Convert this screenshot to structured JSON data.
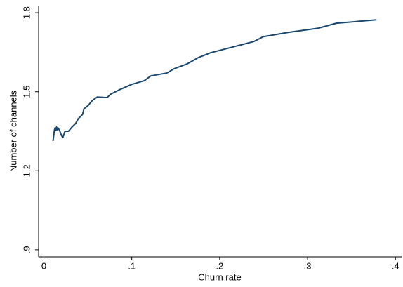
{
  "chart_data": {
    "type": "line",
    "x_label": "Churn rate",
    "y_label": "Number of channels",
    "x": [
      0.0104,
      0.012,
      0.0128,
      0.0136,
      0.0144,
      0.0152,
      0.016,
      0.0176,
      0.02,
      0.0216,
      0.024,
      0.028,
      0.032,
      0.036,
      0.0392,
      0.044,
      0.0456,
      0.0504,
      0.0552,
      0.0608,
      0.0696,
      0.072,
      0.076,
      0.0856,
      0.1,
      0.1144,
      0.1216,
      0.14,
      0.148,
      0.1632,
      0.176,
      0.1896,
      0.2392,
      0.2496,
      0.2776,
      0.312,
      0.3328,
      0.3784
    ],
    "series": [
      {
        "color": "#1a476f",
        "values": [
          1.313,
          1.355,
          1.363,
          1.353,
          1.366,
          1.355,
          1.363,
          1.355,
          1.334,
          1.326,
          1.35,
          1.35,
          1.366,
          1.379,
          1.398,
          1.414,
          1.435,
          1.448,
          1.467,
          1.48,
          1.478,
          1.478,
          1.491,
          1.507,
          1.528,
          1.542,
          1.56,
          1.571,
          1.587,
          1.606,
          1.63,
          1.648,
          1.691,
          1.709,
          1.725,
          1.741,
          1.76,
          1.773
        ]
      }
    ],
    "xlim": [
      -0.006,
      0.407
    ],
    "ylim": [
      0.873,
      1.827
    ],
    "xticks": [
      0,
      {
        "value": 0.1,
        "label": ".1"
      },
      {
        "value": 0.2,
        "label": ".2"
      },
      {
        "value": 0.3,
        "label": ".3"
      },
      {
        "value": 0.4,
        "label": ".4"
      }
    ],
    "yticks": [
      {
        "value": 0.9,
        "label": ".9"
      },
      1.2,
      1.5,
      1.8
    ]
  }
}
